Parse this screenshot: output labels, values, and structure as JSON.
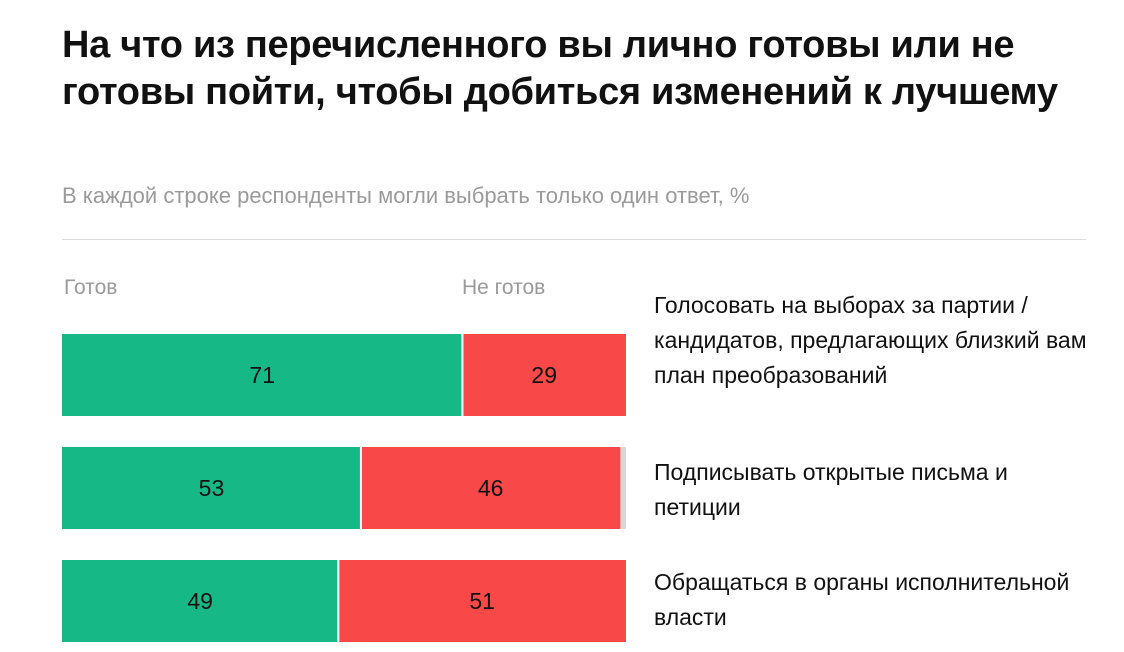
{
  "title": "На что из перечисленного вы лично готовы или не готовы пойти, чтобы добиться изменений к лучшему",
  "subtitle": "В каждой строке респонденты могли выбрать только один ответ, %",
  "colors": {
    "ready": "#16b886",
    "not_ready": "#f84848",
    "remainder": "#d8d8d8"
  },
  "chart_data": {
    "type": "bar",
    "orientation": "horizontal-stacked",
    "categories": [
      "Голосовать на выборах за партии / кандидатов, предлагающих близкий вам план преобразований",
      "Подписывать открытые письма и петиции",
      "Обращаться в органы исполнительной власти"
    ],
    "series": [
      {
        "name": "Готов",
        "values": [
          71,
          53,
          49
        ]
      },
      {
        "name": "Не готов",
        "values": [
          29,
          46,
          51
        ]
      }
    ],
    "xlim": [
      0,
      100
    ],
    "legend": "top"
  }
}
